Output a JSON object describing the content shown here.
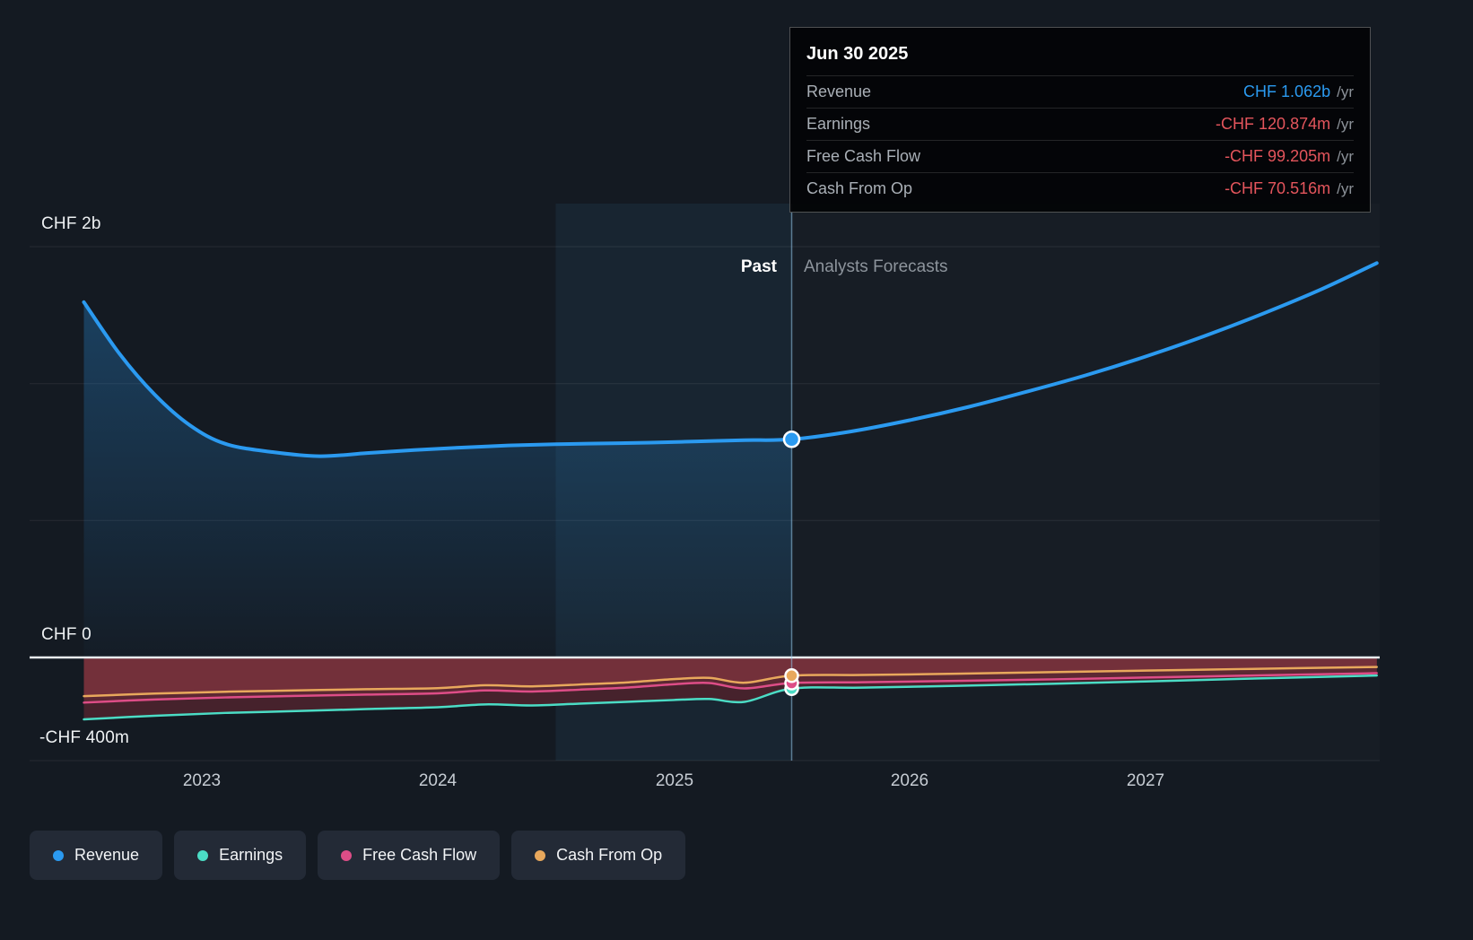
{
  "page": {
    "background": "#141a22"
  },
  "tooltip": {
    "date": "Jun 30 2025",
    "rows": [
      {
        "label": "Revenue",
        "value": "CHF 1.062b",
        "suffix": "/yr",
        "color": "#2b9af0"
      },
      {
        "label": "Earnings",
        "value": "-CHF 120.874m",
        "suffix": "/yr",
        "color": "#e4555c"
      },
      {
        "label": "Free Cash Flow",
        "value": "-CHF 99.205m",
        "suffix": "/yr",
        "color": "#e4555c"
      },
      {
        "label": "Cash From Op",
        "value": "-CHF 70.516m",
        "suffix": "/yr",
        "color": "#e4555c"
      }
    ]
  },
  "axis": {
    "y_labels": {
      "top": "CHF 2b",
      "zero": "CHF 0",
      "bottom": "-CHF 400m"
    },
    "x_ticks": [
      "2023",
      "2024",
      "2025",
      "2026",
      "2027"
    ]
  },
  "divider": {
    "past_label": "Past",
    "forecast_label": "Analysts Forecasts"
  },
  "legend": [
    {
      "label": "Revenue",
      "color": "#2b9af0"
    },
    {
      "label": "Earnings",
      "color": "#4bdcc5"
    },
    {
      "label": "Free Cash Flow",
      "color": "#dd4d87"
    },
    {
      "label": "Cash From Op",
      "color": "#e8a85c"
    }
  ],
  "chart_data": {
    "type": "line",
    "x_unit": "year",
    "y_unit": "CHF millions",
    "x_range": [
      2022.5,
      2027.98
    ],
    "y_axis_labels": [
      {
        "label": "CHF 2b",
        "value": 2000
      },
      {
        "label": "CHF 0",
        "value": 0
      },
      {
        "label": "-CHF 400m",
        "value": -400
      }
    ],
    "gridlines": [
      2000,
      1333,
      667,
      -400
    ],
    "divider_x": 2025.5,
    "divider_date": "Jun 30 2025",
    "highlight_band": [
      2024.5,
      2025.5
    ],
    "x_ticks": [
      2023,
      2024,
      2025,
      2026,
      2027
    ],
    "series": [
      {
        "name": "Revenue",
        "color": "#2b9af0",
        "width": 4,
        "values": [
          [
            2022.5,
            1730
          ],
          [
            2022.65,
            1480
          ],
          [
            2022.8,
            1280
          ],
          [
            2022.95,
            1130
          ],
          [
            2023.1,
            1040
          ],
          [
            2023.3,
            1000
          ],
          [
            2023.5,
            980
          ],
          [
            2023.7,
            995
          ],
          [
            2023.9,
            1010
          ],
          [
            2024.1,
            1022
          ],
          [
            2024.3,
            1032
          ],
          [
            2024.5,
            1038
          ],
          [
            2024.7,
            1042
          ],
          [
            2024.9,
            1046
          ],
          [
            2025.1,
            1052
          ],
          [
            2025.3,
            1058
          ],
          [
            2025.5,
            1062
          ],
          [
            2025.75,
            1100
          ],
          [
            2026,
            1155
          ],
          [
            2026.25,
            1220
          ],
          [
            2026.5,
            1295
          ],
          [
            2026.75,
            1375
          ],
          [
            2027,
            1465
          ],
          [
            2027.25,
            1565
          ],
          [
            2027.5,
            1675
          ],
          [
            2027.75,
            1795
          ],
          [
            2027.98,
            1920
          ]
        ]
      },
      {
        "name": "Earnings",
        "color": "#4bdcc5",
        "width": 2.5,
        "area": "#46222c",
        "values": [
          [
            2022.5,
            -240
          ],
          [
            2022.8,
            -226
          ],
          [
            2023.1,
            -215
          ],
          [
            2023.4,
            -208
          ],
          [
            2023.7,
            -200
          ],
          [
            2024,
            -193
          ],
          [
            2024.2,
            -182
          ],
          [
            2024.4,
            -186
          ],
          [
            2024.6,
            -179
          ],
          [
            2024.8,
            -172
          ],
          [
            2025,
            -165
          ],
          [
            2025.15,
            -161
          ],
          [
            2025.3,
            -172
          ],
          [
            2025.5,
            -120.874
          ],
          [
            2025.8,
            -117
          ],
          [
            2026.2,
            -110
          ],
          [
            2026.6,
            -102
          ],
          [
            2027,
            -93
          ],
          [
            2027.4,
            -83
          ],
          [
            2027.98,
            -70
          ]
        ]
      },
      {
        "name": "Free Cash Flow",
        "color": "#dd4d87",
        "width": 2.5,
        "area": "#5c2833",
        "values": [
          [
            2022.5,
            -175
          ],
          [
            2022.8,
            -163
          ],
          [
            2023.1,
            -155
          ],
          [
            2023.4,
            -149
          ],
          [
            2023.7,
            -144
          ],
          [
            2024,
            -139
          ],
          [
            2024.2,
            -128
          ],
          [
            2024.4,
            -132
          ],
          [
            2024.6,
            -125
          ],
          [
            2024.8,
            -117
          ],
          [
            2025,
            -104
          ],
          [
            2025.15,
            -99
          ],
          [
            2025.3,
            -120
          ],
          [
            2025.5,
            -99.205
          ],
          [
            2025.8,
            -96
          ],
          [
            2026.2,
            -91
          ],
          [
            2026.6,
            -85
          ],
          [
            2027,
            -78
          ],
          [
            2027.4,
            -71
          ],
          [
            2027.98,
            -61
          ]
        ]
      },
      {
        "name": "Cash From Op",
        "color": "#e8a85c",
        "width": 2.5,
        "area": "#73303a",
        "values": [
          [
            2022.5,
            -150
          ],
          [
            2022.8,
            -140
          ],
          [
            2023.1,
            -133
          ],
          [
            2023.4,
            -128
          ],
          [
            2023.7,
            -123
          ],
          [
            2024,
            -119
          ],
          [
            2024.2,
            -108
          ],
          [
            2024.4,
            -112
          ],
          [
            2024.6,
            -105
          ],
          [
            2024.8,
            -97
          ],
          [
            2025,
            -84
          ],
          [
            2025.15,
            -79
          ],
          [
            2025.3,
            -98
          ],
          [
            2025.5,
            -70.516
          ],
          [
            2025.8,
            -68
          ],
          [
            2026.2,
            -63
          ],
          [
            2026.6,
            -57
          ],
          [
            2027,
            -51
          ],
          [
            2027.4,
            -45
          ],
          [
            2027.98,
            -37
          ]
        ]
      }
    ],
    "markers": [
      {
        "series": "Earnings",
        "x": 2025.5,
        "y": -120.874,
        "r": 7
      },
      {
        "series": "Free Cash Flow",
        "x": 2025.5,
        "y": -99.205,
        "r": 7
      },
      {
        "series": "Cash From Op",
        "x": 2025.5,
        "y": -70.516,
        "r": 7
      },
      {
        "series": "Revenue",
        "x": 2025.5,
        "y": 1062,
        "r": 8.5
      }
    ]
  }
}
